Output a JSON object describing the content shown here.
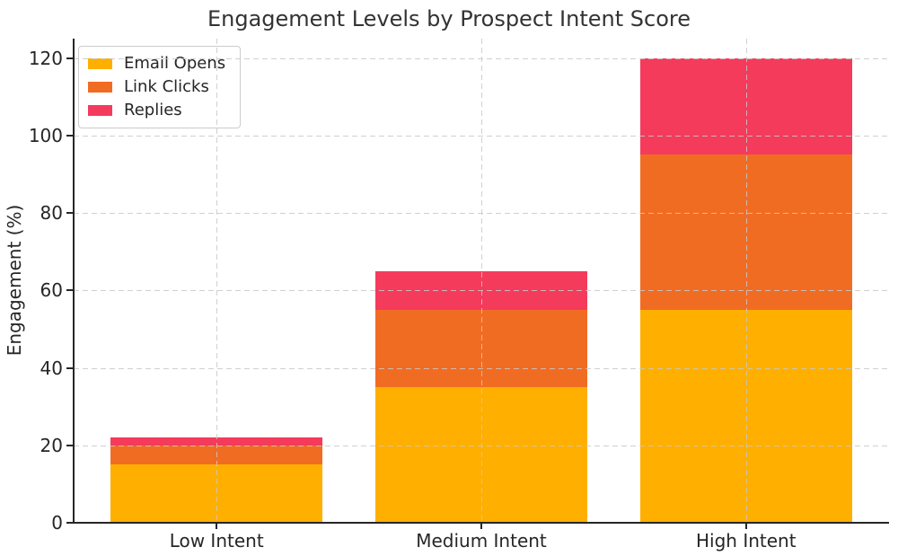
{
  "chart_data": {
    "type": "bar",
    "stacked": true,
    "title": "Engagement Levels by Prospect Intent Score",
    "xlabel": "",
    "ylabel": "Engagement (%)",
    "categories": [
      "Low Intent",
      "Medium Intent",
      "High Intent"
    ],
    "series": [
      {
        "name": "Email Opens",
        "color": "#FFAF00",
        "values": [
          15,
          35,
          55
        ]
      },
      {
        "name": "Link Clicks",
        "color": "#F16C23",
        "values": [
          5,
          20,
          40
        ]
      },
      {
        "name": "Replies",
        "color": "#F43B5C",
        "values": [
          2,
          10,
          25
        ]
      }
    ],
    "ylim": [
      0,
      125
    ],
    "yticks": [
      0,
      20,
      40,
      60,
      80,
      100,
      120
    ],
    "grid": true,
    "grid_style": "dashed",
    "legend_position": "upper-left"
  },
  "style": {
    "background": "#ffffff",
    "text_color": "#262626",
    "title_color": "#333333",
    "grid_color": "#cccccc",
    "spine_color": "#262626"
  }
}
